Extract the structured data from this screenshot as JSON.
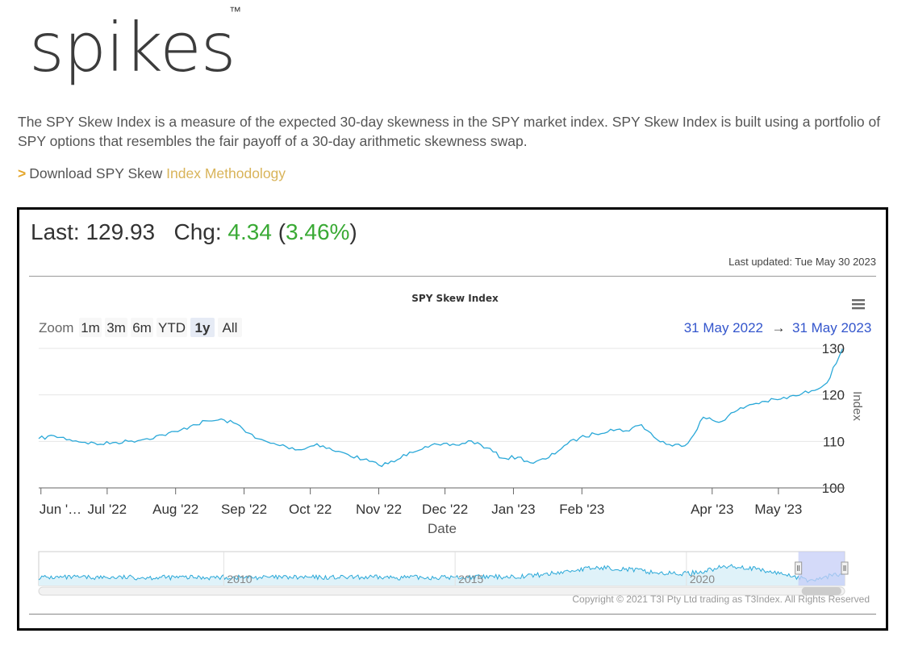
{
  "logo": {
    "text": "spikes",
    "tm": "™"
  },
  "intro": "The SPY Skew Index is a measure of the expected 30-day skewness in the SPY market index. SPY Skew Index is built using a portfolio of SPY options that resembles the fair payoff of a 30-day arithmetic skewness swap.",
  "download": {
    "arrow": ">",
    "prefix": "Download SPY Skew ",
    "link": "Index Methodology"
  },
  "quote": {
    "last_label": "Last:",
    "last_value": "129.93",
    "chg_label": "Chg:",
    "chg_value": "4.34",
    "chg_pct": "3.46%",
    "paren_open": "(",
    "paren_close": ")"
  },
  "updated": "Last updated: Tue May 30 2023",
  "colors": {
    "line": "#2aa8d8",
    "green": "#3aaa35",
    "link": "#3355cc",
    "selected": "#e6ebf5",
    "navigator_mask": "#c6cdf7"
  },
  "chart_data": {
    "type": "line",
    "title": "SPY Skew Index",
    "xlabel": "Date",
    "ylabel": "Index",
    "ylim": [
      100,
      130
    ],
    "yticks": [
      100,
      110,
      120,
      130
    ],
    "xlim": [
      "2022-05-31",
      "2023-05-31"
    ],
    "xticks": [
      {
        "date": "2022-06-01",
        "label": "Jun '…"
      },
      {
        "date": "2022-07-01",
        "label": "Jul '22"
      },
      {
        "date": "2022-08-01",
        "label": "Aug '22"
      },
      {
        "date": "2022-09-01",
        "label": "Sep '22"
      },
      {
        "date": "2022-10-01",
        "label": "Oct '22"
      },
      {
        "date": "2022-11-01",
        "label": "Nov '22"
      },
      {
        "date": "2022-12-01",
        "label": "Dec '22"
      },
      {
        "date": "2023-01-01",
        "label": "Jan '23"
      },
      {
        "date": "2023-02-01",
        "label": "Feb '23"
      },
      {
        "date": "2023-04-01",
        "label": "Apr '23"
      },
      {
        "date": "2023-05-01",
        "label": "May '23"
      }
    ],
    "grid": true,
    "series": [
      {
        "x": [
          "2022-05-31",
          "2022-06-07",
          "2022-06-14",
          "2022-06-21",
          "2022-06-28",
          "2022-07-05",
          "2022-07-12",
          "2022-07-19",
          "2022-07-26",
          "2022-08-02",
          "2022-08-09",
          "2022-08-16",
          "2022-08-23",
          "2022-08-30",
          "2022-09-06",
          "2022-09-13",
          "2022-09-20",
          "2022-09-27",
          "2022-10-04",
          "2022-10-11",
          "2022-10-18",
          "2022-10-25",
          "2022-11-01",
          "2022-11-08",
          "2022-11-15",
          "2022-11-22",
          "2022-11-29",
          "2022-12-06",
          "2022-12-13",
          "2022-12-20",
          "2022-12-27",
          "2023-01-03",
          "2023-01-10",
          "2023-01-17",
          "2023-01-24",
          "2023-01-31",
          "2023-02-07",
          "2023-02-14",
          "2023-02-21",
          "2023-02-28",
          "2023-03-07",
          "2023-03-14",
          "2023-03-21",
          "2023-03-28",
          "2023-04-04",
          "2023-04-11",
          "2023-04-18",
          "2023-04-25",
          "2023-05-02",
          "2023-05-09",
          "2023-05-16",
          "2023-05-23",
          "2023-05-30"
        ],
        "y": [
          110.6,
          111.2,
          110.4,
          109.8,
          109.4,
          109.8,
          110.1,
          110.6,
          111.4,
          112.1,
          113.6,
          114.4,
          114.6,
          113.4,
          110.7,
          109.6,
          108.9,
          108.2,
          109.5,
          108.1,
          107.2,
          106.1,
          104.9,
          105.6,
          107.7,
          108.9,
          109.2,
          109.2,
          110.1,
          108.6,
          106.4,
          106.6,
          105.3,
          106.5,
          109.1,
          110.8,
          111.6,
          112.6,
          112.3,
          113.6,
          110.4,
          109.0,
          109.6,
          115.2,
          114.1,
          116.3,
          117.9,
          118.6,
          119.1,
          119.8,
          120.9,
          122.6,
          129.9
        ]
      }
    ],
    "zoom": {
      "label": "Zoom",
      "options": [
        "1m",
        "3m",
        "6m",
        "YTD",
        "1y",
        "All"
      ],
      "selected": "1y"
    },
    "range": {
      "from": "31 May 2022",
      "arrow": "→",
      "to": "31 May 2023"
    },
    "navigator": {
      "labels": [
        "2010",
        "2015",
        "2020"
      ],
      "label_years": [
        2010,
        2015,
        2020
      ],
      "start_year": 2006,
      "end_year": 2023.42,
      "selection": [
        2022.42,
        2023.42
      ]
    },
    "credits": "Copyright © 2021 T3I Pty Ltd trading as T3Index. All Rights Reserved"
  }
}
